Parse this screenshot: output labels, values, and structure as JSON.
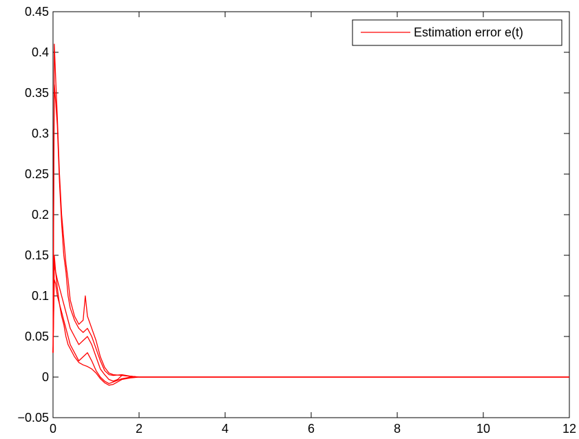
{
  "chart_data": {
    "type": "line",
    "title": "",
    "xlabel": "",
    "ylabel": "",
    "xlim": [
      0,
      12
    ],
    "ylim": [
      -0.05,
      0.45
    ],
    "xticks": [
      0,
      2,
      4,
      6,
      8,
      10,
      12
    ],
    "xtick_labels": [
      "0",
      "2",
      "4",
      "6",
      "8",
      "10",
      "12"
    ],
    "yticks": [
      -0.05,
      0,
      0.05,
      0.1,
      0.15,
      0.2,
      0.25,
      0.3,
      0.35,
      0.4,
      0.45
    ],
    "ytick_labels": [
      "−0.05",
      "0",
      "0.05",
      "0.1",
      "0.15",
      "0.2",
      "0.25",
      "0.3",
      "0.35",
      "0.4",
      "0.45"
    ],
    "grid": false,
    "legend": {
      "position": "top-right",
      "entries": [
        "Estimation error e(t)"
      ]
    },
    "line_color": "#ff0000",
    "series": [
      {
        "name": "Estimation error e(t)",
        "x": [
          0,
          0.03,
          0.06,
          0.1,
          0.15,
          0.2,
          0.25,
          0.3,
          0.35,
          0.4,
          0.5,
          0.6,
          0.7,
          0.75,
          0.8,
          0.9,
          1.0,
          1.1,
          1.2,
          1.3,
          1.4,
          1.6,
          1.8,
          2.0,
          2.4,
          3.0,
          4.0,
          12.0
        ],
        "y": [
          0.03,
          0.41,
          0.37,
          0.32,
          0.25,
          0.2,
          0.17,
          0.14,
          0.12,
          0.095,
          0.075,
          0.065,
          0.07,
          0.1,
          0.075,
          0.06,
          0.045,
          0.025,
          0.012,
          0.005,
          0.003,
          0.002,
          0.001,
          0.0,
          0.0,
          0.0,
          0.0,
          0.0
        ]
      },
      {
        "x": [
          0,
          0.03,
          0.06,
          0.1,
          0.15,
          0.2,
          0.25,
          0.3,
          0.35,
          0.4,
          0.5,
          0.6,
          0.7,
          0.8,
          0.9,
          1.0,
          1.1,
          1.2,
          1.3,
          1.4,
          1.6,
          1.8,
          2.0,
          2.4,
          3.0,
          4.0,
          12.0
        ],
        "y": [
          0.03,
          0.36,
          0.34,
          0.31,
          0.24,
          0.19,
          0.15,
          0.13,
          0.1,
          0.085,
          0.07,
          0.06,
          0.055,
          0.06,
          0.05,
          0.035,
          0.02,
          0.008,
          0.003,
          0.002,
          0.003,
          0.001,
          0.0,
          0.0,
          0.0,
          0.0,
          0.0
        ]
      },
      {
        "x": [
          0,
          0.03,
          0.06,
          0.1,
          0.15,
          0.2,
          0.25,
          0.3,
          0.35,
          0.4,
          0.5,
          0.6,
          0.7,
          0.8,
          0.9,
          1.0,
          1.1,
          1.2,
          1.3,
          1.4,
          1.5,
          1.6,
          1.8,
          2.0,
          2.4,
          3.0,
          4.0,
          12.0
        ],
        "y": [
          0.03,
          0.14,
          0.13,
          0.12,
          0.11,
          0.1,
          0.09,
          0.08,
          0.07,
          0.06,
          0.05,
          0.04,
          0.045,
          0.05,
          0.04,
          0.025,
          0.01,
          0.003,
          -0.003,
          -0.005,
          -0.003,
          0.002,
          0.001,
          0.0,
          0.0,
          0.0,
          0.0,
          0.0
        ]
      },
      {
        "x": [
          0,
          0.03,
          0.06,
          0.1,
          0.15,
          0.2,
          0.25,
          0.3,
          0.35,
          0.4,
          0.5,
          0.6,
          0.7,
          0.8,
          0.9,
          1.0,
          1.1,
          1.2,
          1.3,
          1.4,
          1.5,
          1.6,
          1.8,
          2.0,
          2.4,
          3.0,
          4.0,
          12.0
        ],
        "y": [
          0.03,
          0.12,
          0.115,
          0.1,
          0.09,
          0.08,
          0.07,
          0.06,
          0.05,
          0.04,
          0.03,
          0.02,
          0.025,
          0.03,
          0.02,
          0.008,
          0.0,
          -0.005,
          -0.008,
          -0.006,
          -0.004,
          -0.002,
          0.0,
          0.0,
          0.0,
          0.0,
          0.0,
          0.0
        ]
      },
      {
        "x": [
          0,
          0.03,
          0.06,
          0.1,
          0.15,
          0.2,
          0.25,
          0.3,
          0.35,
          0.4,
          0.5,
          0.6,
          0.7,
          0.8,
          0.9,
          1.0,
          1.1,
          1.2,
          1.3,
          1.4,
          1.5,
          1.6,
          1.8,
          2.0,
          2.4,
          3.0,
          4.0,
          12.0
        ],
        "y": [
          0.03,
          0.15,
          0.13,
          0.11,
          0.09,
          0.075,
          0.065,
          0.05,
          0.04,
          0.035,
          0.025,
          0.018,
          0.015,
          0.013,
          0.01,
          0.005,
          -0.002,
          -0.007,
          -0.01,
          -0.009,
          -0.006,
          -0.003,
          -0.001,
          0.0,
          0.0,
          0.0,
          0.0,
          0.0
        ]
      }
    ]
  }
}
